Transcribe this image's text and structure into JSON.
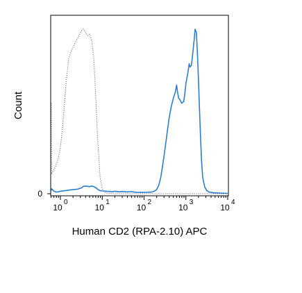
{
  "chart_data": {
    "type": "histogram",
    "xlabel": "Human CD2 (RPA-2.10) APC",
    "ylabel": "Count",
    "x_scale": "log",
    "xlim": [
      0.55,
      10000
    ],
    "ylim": [
      0,
      1.0
    ],
    "x_ticks": [
      {
        "base": "10",
        "exp": "0",
        "value": 1
      },
      {
        "base": "10",
        "exp": "1",
        "value": 10
      },
      {
        "base": "10",
        "exp": "2",
        "value": 100
      },
      {
        "base": "10",
        "exp": "3",
        "value": 1000
      },
      {
        "base": "10",
        "exp": "4",
        "value": 10000
      }
    ],
    "y_ticks": [
      {
        "label": "0",
        "value": 0
      }
    ],
    "series": [
      {
        "style": "dotted",
        "color": "#666666",
        "points": [
          [
            0.6,
            0.55
          ],
          [
            0.62,
            0.12
          ],
          [
            0.68,
            0.14
          ],
          [
            0.78,
            0.17
          ],
          [
            0.9,
            0.22
          ],
          [
            1.0,
            0.28
          ],
          [
            1.12,
            0.4
          ],
          [
            1.25,
            0.55
          ],
          [
            1.4,
            0.7
          ],
          [
            1.58,
            0.82
          ],
          [
            1.78,
            0.86
          ],
          [
            2.0,
            0.89
          ],
          [
            2.2,
            0.91
          ],
          [
            2.5,
            0.94
          ],
          [
            2.8,
            0.96
          ],
          [
            3.16,
            0.99
          ],
          [
            3.55,
            1.0
          ],
          [
            4.0,
            0.98
          ],
          [
            4.47,
            0.96
          ],
          [
            5.0,
            0.97
          ],
          [
            5.6,
            0.93
          ],
          [
            6.3,
            0.82
          ],
          [
            7.1,
            0.55
          ],
          [
            7.9,
            0.3
          ],
          [
            8.9,
            0.1
          ],
          [
            10.0,
            0.03
          ],
          [
            11.2,
            0.01
          ],
          [
            12.6,
            0.005
          ],
          [
            15.0,
            0.002
          ],
          [
            20.0,
            0.0
          ],
          [
            10000,
            0.0
          ]
        ]
      },
      {
        "style": "solid",
        "color": "#2a7fd4",
        "points": [
          [
            0.55,
            0.02
          ],
          [
            0.62,
            0.03
          ],
          [
            0.7,
            0.015
          ],
          [
            0.8,
            0.01
          ],
          [
            0.9,
            0.012
          ],
          [
            1.0,
            0.015
          ],
          [
            1.26,
            0.018
          ],
          [
            1.58,
            0.022
          ],
          [
            2.0,
            0.025
          ],
          [
            2.5,
            0.027
          ],
          [
            3.16,
            0.035
          ],
          [
            3.55,
            0.045
          ],
          [
            4.0,
            0.046
          ],
          [
            4.47,
            0.045
          ],
          [
            5.0,
            0.043
          ],
          [
            5.6,
            0.047
          ],
          [
            6.3,
            0.043
          ],
          [
            7.1,
            0.036
          ],
          [
            7.9,
            0.025
          ],
          [
            8.9,
            0.018
          ],
          [
            10.0,
            0.017
          ],
          [
            11.2,
            0.016
          ],
          [
            14.1,
            0.014
          ],
          [
            17.8,
            0.012
          ],
          [
            20.0,
            0.015
          ],
          [
            25.1,
            0.012
          ],
          [
            31.6,
            0.013
          ],
          [
            39.8,
            0.011
          ],
          [
            50.1,
            0.013
          ],
          [
            63.1,
            0.009
          ],
          [
            79.4,
            0.008
          ],
          [
            100,
            0.008
          ],
          [
            126,
            0.009
          ],
          [
            158,
            0.011
          ],
          [
            178,
            0.016
          ],
          [
            200,
            0.025
          ],
          [
            224,
            0.05
          ],
          [
            251,
            0.1
          ],
          [
            282,
            0.18
          ],
          [
            316,
            0.27
          ],
          [
            355,
            0.37
          ],
          [
            398,
            0.46
          ],
          [
            447,
            0.53
          ],
          [
            501,
            0.58
          ],
          [
            562,
            0.62
          ],
          [
            600,
            0.66
          ],
          [
            631,
            0.62
          ],
          [
            669,
            0.58
          ],
          [
            708,
            0.575
          ],
          [
            794,
            0.55
          ],
          [
            891,
            0.56
          ],
          [
            955,
            0.62
          ],
          [
            1000,
            0.67
          ],
          [
            1122,
            0.74
          ],
          [
            1200,
            0.79
          ],
          [
            1259,
            0.77
          ],
          [
            1349,
            0.78
          ],
          [
            1412,
            0.82
          ],
          [
            1496,
            0.88
          ],
          [
            1585,
            0.94
          ],
          [
            1660,
            1.0
          ],
          [
            1778,
            0.98
          ],
          [
            1884,
            0.86
          ],
          [
            1995,
            0.7
          ],
          [
            2113,
            0.52
          ],
          [
            2239,
            0.35
          ],
          [
            2371,
            0.2
          ],
          [
            2512,
            0.1
          ],
          [
            2818,
            0.04
          ],
          [
            3162,
            0.018
          ],
          [
            3548,
            0.01
          ],
          [
            4467,
            0.006
          ],
          [
            6310,
            0.004
          ],
          [
            10000,
            0.002
          ]
        ]
      }
    ]
  }
}
